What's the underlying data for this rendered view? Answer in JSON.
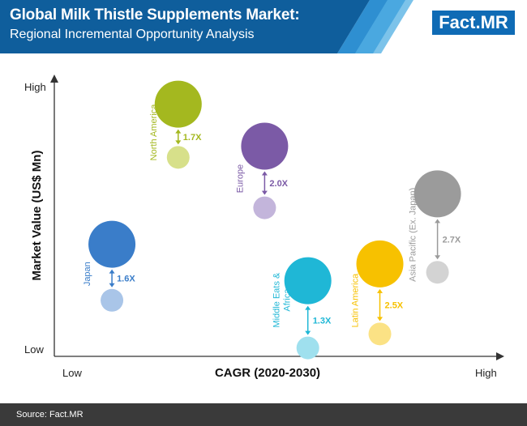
{
  "header": {
    "title": "Global Milk Thistle Supplements Market:",
    "subtitle": "Regional Incremental Opportunity Analysis",
    "logo_main": "Fact",
    "logo_dot": ".",
    "logo_accent": "MR",
    "colors": {
      "bar": "#0f5e9c",
      "stripe1": "#2e8fd1",
      "stripe2": "#4aa8e0",
      "stripe3": "#7cc3ea"
    }
  },
  "chart_data": {
    "type": "scatter",
    "title": "",
    "xlabel": "CAGR (2020-2030)",
    "ylabel": "Market Value (US$ Mn)",
    "x_low_label": "Low",
    "x_high_label": "High",
    "y_low_label": "Low",
    "y_high_label": "High",
    "xlim": [
      0,
      10
    ],
    "ylim": [
      0,
      10
    ],
    "series": [
      {
        "name": "North America",
        "multiplier": "1.7X",
        "color": "#a4b81f",
        "color_small": "#d7e08a",
        "x": 4.3,
        "y_big": 9.0,
        "y_small": 7.1,
        "size_big": 29,
        "size_small": 14
      },
      {
        "name": "Europe",
        "multiplier": "2.0X",
        "color": "#7b5aa6",
        "color_small": "#c3b5db",
        "x": 7.3,
        "y_big": 7.5,
        "y_small": 5.3,
        "size_big": 29,
        "size_small": 14
      },
      {
        "name": "Japan",
        "multiplier": "1.6X",
        "color": "#3a7dc9",
        "color_small": "#a9c5e8",
        "x": 2.0,
        "y_big": 4.0,
        "y_small": 2.0,
        "size_big": 29,
        "size_small": 14
      },
      {
        "name": "Middle Eats & Africa",
        "multiplier": "1.3X",
        "color": "#1fb7d6",
        "color_small": "#9fe0ee",
        "x": 8.8,
        "y_big": 2.7,
        "y_small": 0.3,
        "size_big": 29,
        "size_small": 14
      },
      {
        "name": "Latin America",
        "multiplier": "2.5X",
        "color": "#f7c100",
        "color_small": "#fbe285",
        "x": 11.3,
        "y_big": 3.3,
        "y_small": 0.8,
        "size_big": 29,
        "size_small": 14
      },
      {
        "name": "Asia Pacific (Ex. Japan)",
        "multiplier": "2.7X",
        "color": "#9b9b9b",
        "color_small": "#d3d3d3",
        "x": 13.3,
        "y_big": 5.8,
        "y_small": 3.0,
        "size_big": 29,
        "size_small": 14
      }
    ],
    "grid": false,
    "legend": "none"
  },
  "footer": {
    "source": "Source: Fact.MR"
  }
}
